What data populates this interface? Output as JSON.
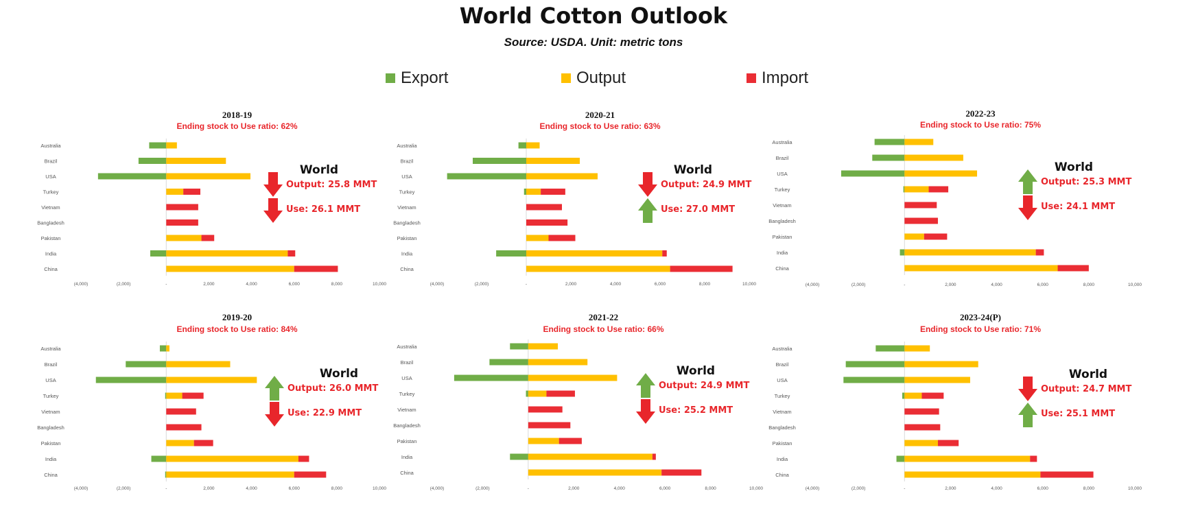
{
  "page": {
    "title": "World Cotton Outlook",
    "subtitle": "Source: USDA. Unit: metric tons"
  },
  "legend": [
    {
      "name": "Export",
      "color": "#70ad47"
    },
    {
      "name": "Output",
      "color": "#ffc000"
    },
    {
      "name": "Import",
      "color": "#ea2d34"
    }
  ],
  "colors": {
    "export": "#70ad47",
    "output": "#ffc000",
    "import": "#ea2d34",
    "up_arrow": "#70ad47",
    "down_arrow": "#e8262b",
    "highlight_text": "#e8262b"
  },
  "chart_data": [
    {
      "type": "bar",
      "orientation": "horizontal",
      "stacked": true,
      "title": "2018-19",
      "subtitle": "Ending stock to Use ratio: 62%",
      "categories": [
        "Australia",
        "Brazil",
        "USA",
        "Turkey",
        "Vietnam",
        "Bangladesh",
        "Pakistan",
        "India",
        "China"
      ],
      "xlim": [
        -4000,
        10000
      ],
      "xticks": [
        -4000,
        -2000,
        0,
        2000,
        4000,
        6000,
        8000,
        10000
      ],
      "xtick_labels": [
        "(4,000)",
        "(2,000)",
        "-",
        "2,000",
        "4,000",
        "6,000",
        "8,000",
        "10,000"
      ],
      "series": [
        {
          "name": "Export",
          "values": [
            -800,
            -1300,
            -3200,
            0,
            0,
            0,
            0,
            -750,
            0
          ]
        },
        {
          "name": "Output",
          "values": [
            500,
            2800,
            3950,
            800,
            0,
            0,
            1650,
            5700,
            6000
          ]
        },
        {
          "name": "Import",
          "values": [
            0,
            0,
            0,
            800,
            1500,
            1500,
            600,
            350,
            2050
          ]
        }
      ],
      "world": {
        "heading": "World",
        "output_label": "Output: 25.8 MMT",
        "output_trend": "down",
        "use_label": "Use: 26.1 MMT",
        "use_trend": "down"
      }
    },
    {
      "type": "bar",
      "orientation": "horizontal",
      "stacked": true,
      "title": "2020-21",
      "subtitle": "Ending stock to Use ratio: 63%",
      "categories": [
        "Australia",
        "Brazil",
        "USA",
        "Turkey",
        "Vietnam",
        "Bangladesh",
        "Pakistan",
        "India",
        "China"
      ],
      "xlim": [
        -4000,
        10000
      ],
      "xticks": [
        -4000,
        -2000,
        0,
        2000,
        4000,
        6000,
        8000,
        10000
      ],
      "xtick_labels": [
        "(4,000)",
        "(2,000)",
        "-",
        "2,000",
        "4,000",
        "6,000",
        "8,000",
        "10,000"
      ],
      "series": [
        {
          "name": "Export",
          "values": [
            -350,
            -2400,
            -3550,
            -100,
            0,
            0,
            0,
            -1350,
            0
          ]
        },
        {
          "name": "Output",
          "values": [
            600,
            2400,
            3200,
            650,
            0,
            0,
            1000,
            6100,
            6450
          ]
        },
        {
          "name": "Import",
          "values": [
            0,
            0,
            0,
            1100,
            1600,
            1850,
            1200,
            200,
            2800
          ]
        }
      ],
      "world": {
        "heading": "World",
        "output_label": "Output: 24.9 MMT",
        "output_trend": "down",
        "use_label": "Use: 27.0 MMT",
        "use_trend": "up"
      }
    },
    {
      "type": "bar",
      "orientation": "horizontal",
      "stacked": true,
      "title": "2022-23",
      "subtitle": "Ending stock to Use ratio: 75%",
      "categories": [
        "Australia",
        "Brazil",
        "USA",
        "Turkey",
        "Vietnam",
        "Bangladesh",
        "Pakistan",
        "India",
        "China"
      ],
      "xlim": [
        -4000,
        10000
      ],
      "xticks": [
        -4000,
        -2000,
        0,
        2000,
        4000,
        6000,
        8000,
        10000
      ],
      "xtick_labels": [
        "(4,000)",
        "(2,000)",
        "-",
        "2,000",
        "4,000",
        "6,000",
        "8,000",
        "10,000"
      ],
      "series": [
        {
          "name": "Export",
          "values": [
            -1300,
            -1400,
            -2750,
            -50,
            0,
            0,
            0,
            -200,
            0
          ]
        },
        {
          "name": "Output",
          "values": [
            1250,
            2550,
            3150,
            1050,
            0,
            0,
            850,
            5700,
            6650
          ]
        },
        {
          "name": "Import",
          "values": [
            0,
            0,
            0,
            850,
            1400,
            1450,
            1000,
            350,
            1350
          ]
        }
      ],
      "world": {
        "heading": "World",
        "output_label": "Output: 25.3 MMT",
        "output_trend": "up",
        "use_label": "Use: 24.1 MMT",
        "use_trend": "down"
      }
    },
    {
      "type": "bar",
      "orientation": "horizontal",
      "stacked": true,
      "title": "2019-20",
      "subtitle": "Ending stock to Use ratio: 84%",
      "categories": [
        "Australia",
        "Brazil",
        "USA",
        "Turkey",
        "Vietnam",
        "Bangladesh",
        "Pakistan",
        "India",
        "China"
      ],
      "xlim": [
        -4000,
        10000
      ],
      "xticks": [
        -4000,
        -2000,
        0,
        2000,
        4000,
        6000,
        8000,
        10000
      ],
      "xtick_labels": [
        "(4,000)",
        "(2,000)",
        "-",
        "2,000",
        "4,000",
        "6,000",
        "8,000",
        "10,000"
      ],
      "series": [
        {
          "name": "Export",
          "values": [
            -300,
            -1900,
            -3300,
            -50,
            0,
            0,
            0,
            -700,
            -50
          ]
        },
        {
          "name": "Output",
          "values": [
            150,
            3000,
            4250,
            750,
            0,
            0,
            1300,
            6200,
            6000
          ]
        },
        {
          "name": "Import",
          "values": [
            0,
            0,
            0,
            1000,
            1400,
            1650,
            900,
            500,
            1500
          ]
        }
      ],
      "world": {
        "heading": "World",
        "output_label": "Output: 26.0 MMT",
        "output_trend": "up",
        "use_label": "Use: 22.9 MMT",
        "use_trend": "down"
      }
    },
    {
      "type": "bar",
      "orientation": "horizontal",
      "stacked": true,
      "title": "2021-22",
      "subtitle": "Ending stock to Use ratio: 66%",
      "categories": [
        "Australia",
        "Brazil",
        "USA",
        "Turkey",
        "Vietnam",
        "Bangladesh",
        "Pakistan",
        "India",
        "China"
      ],
      "xlim": [
        -4000,
        10000
      ],
      "xticks": [
        -4000,
        -2000,
        0,
        2000,
        4000,
        6000,
        8000,
        10000
      ],
      "xtick_labels": [
        "(4,000)",
        "(2,000)",
        "-",
        "2,000",
        "4,000",
        "6,000",
        "8,000",
        "10,000"
      ],
      "series": [
        {
          "name": "Export",
          "values": [
            -800,
            -1700,
            -3250,
            -100,
            0,
            0,
            0,
            -800,
            0
          ]
        },
        {
          "name": "Output",
          "values": [
            1300,
            2600,
            3900,
            800,
            0,
            0,
            1350,
            5450,
            5850
          ]
        },
        {
          "name": "Import",
          "values": [
            0,
            0,
            0,
            1250,
            1500,
            1850,
            1000,
            150,
            1750
          ]
        }
      ],
      "world": {
        "heading": "World",
        "output_label": "Output: 24.9 MMT",
        "output_trend": "up",
        "use_label": "Use: 25.2 MMT",
        "use_trend": "down"
      }
    },
    {
      "type": "bar",
      "orientation": "horizontal",
      "stacked": true,
      "title": "2023-24(P)",
      "subtitle": "Ending stock to Use ratio: 71%",
      "categories": [
        "Australia",
        "Brazil",
        "USA",
        "Turkey",
        "Vietnam",
        "Bangladesh",
        "Pakistan",
        "India",
        "China"
      ],
      "xlim": [
        -4000,
        10000
      ],
      "xticks": [
        -4000,
        -2000,
        0,
        2000,
        4000,
        6000,
        8000,
        10000
      ],
      "xtick_labels": [
        "(4,000)",
        "(2,000)",
        "-",
        "2,000",
        "4,000",
        "6,000",
        "8,000",
        "10,000"
      ],
      "series": [
        {
          "name": "Export",
          "values": [
            -1250,
            -2550,
            -2650,
            -100,
            0,
            0,
            0,
            -350,
            0
          ]
        },
        {
          "name": "Output",
          "values": [
            1100,
            3200,
            2850,
            750,
            0,
            0,
            1450,
            5450,
            5900
          ]
        },
        {
          "name": "Import",
          "values": [
            0,
            0,
            0,
            950,
            1500,
            1550,
            900,
            300,
            2300
          ]
        }
      ],
      "world": {
        "heading": "World",
        "output_label": "Output: 24.7 MMT",
        "output_trend": "down",
        "use_label": "Use: 25.1 MMT",
        "use_trend": "up"
      }
    }
  ]
}
